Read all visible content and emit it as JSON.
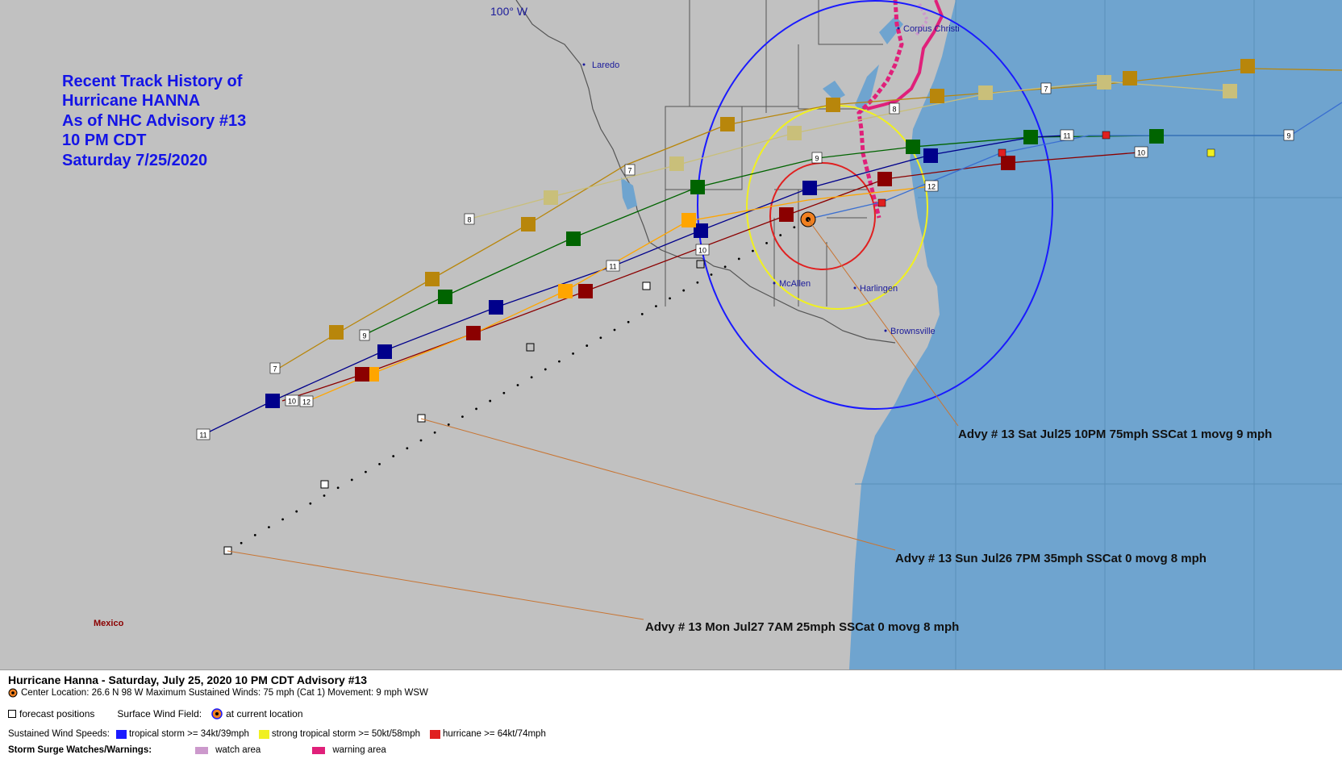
{
  "map": {
    "title_lines": [
      "Recent Track History of",
      "Hurricane HANNA",
      "As of NHC Advisory #13",
      "10 PM CDT",
      "Saturday 7/25/2020"
    ],
    "meridian_label": "100° W",
    "cities": [
      {
        "name": "Laredo"
      },
      {
        "name": "Corpus Christi"
      },
      {
        "name": "McAllen"
      },
      {
        "name": "Harlingen"
      },
      {
        "name": "Brownsville"
      }
    ],
    "country_label": "Mexico",
    "callouts": [
      {
        "text": "Advy # 13 Sat Jul25 10PM  75mph SSCat 1 movg 9 mph"
      },
      {
        "text": "Advy # 13 Sun Jul26 7PM  35mph SSCat 0 movg 8 mph"
      },
      {
        "text": "Advy # 13 Mon Jul27 7AM  25mph SSCat 0 movg 8 mph"
      }
    ],
    "track_labels": [
      "7",
      "8",
      "9",
      "10",
      "11",
      "12"
    ],
    "colors": {
      "land": "#c1c1c1",
      "water": "#6fa4cf",
      "tropical_storm": "#1a1aff",
      "strong_tropical_storm": "#f0f020",
      "hurricane": "#e02020",
      "watch_area": "#cc99cc",
      "warning_area": "#e0207a",
      "adv7": "#b8860b",
      "adv8": "#c9bf7a",
      "adv9": "#006400",
      "adv10": "#8b0000",
      "adv11": "#00008b",
      "adv12": "#ffa500"
    }
  },
  "legend": {
    "title": "Hurricane Hanna  -  Saturday, July 25, 2020  10 PM CDT   Advisory #13",
    "center_info": "Center Location: 26.6 N  98 W   Maximum Sustained Winds: 75 mph (Cat 1) Movement: 9 mph WSW",
    "forecast_positions": "forecast positions",
    "surface_wind_field": "Surface Wind Field:",
    "at_current_location": "at current location",
    "sustained_wind_speeds": "Sustained Wind Speeds:",
    "tropical_storm": "tropical storm >= 34kt/39mph",
    "strong_tropical_storm": "strong tropical storm >= 50kt/58mph",
    "hurricane": "hurricane >= 64kt/74mph",
    "storm_surge": "Storm Surge Watches/Warnings:",
    "watch_area": "watch area",
    "warning_area": "warning area"
  }
}
